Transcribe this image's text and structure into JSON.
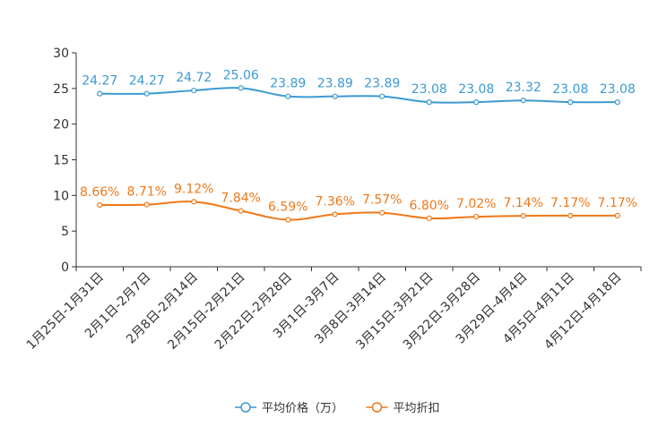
{
  "chart_data": {
    "type": "line",
    "title": "",
    "xlabel": "",
    "ylabel": "",
    "ylim": [
      0,
      30
    ],
    "yticks": [
      0,
      5,
      10,
      15,
      20,
      25,
      30
    ],
    "categories": [
      "1月25日-1月31日",
      "2月1日-2月7日",
      "2月8日-2月14日",
      "2月15日-2月21日",
      "2月22日-2月28日",
      "3月1日-3月7日",
      "3月8日-3月14日",
      "3月15日-3月21日",
      "3月22日-3月28日",
      "3月29日-4月4日",
      "4月5日-4月11日",
      "4月12日-4月18日"
    ],
    "series": [
      {
        "name": "平均价格（万）",
        "color": "#3b9ad2",
        "values": [
          24.27,
          24.27,
          24.72,
          25.06,
          23.89,
          23.89,
          23.89,
          23.08,
          23.08,
          23.32,
          23.08,
          23.08
        ],
        "labels": [
          "24.27",
          "24.27",
          "24.72",
          "25.06",
          "23.89",
          "23.89",
          "23.89",
          "23.08",
          "23.08",
          "23.32",
          "23.08",
          "23.08"
        ]
      },
      {
        "name": "平均折扣",
        "color": "#f07818",
        "values": [
          8.66,
          8.71,
          9.12,
          7.84,
          6.59,
          7.36,
          7.57,
          6.8,
          7.02,
          7.14,
          7.17,
          7.17
        ],
        "labels": [
          "8.66%",
          "8.71%",
          "9.12%",
          "7.84%",
          "6.59%",
          "7.36%",
          "7.57%",
          "6.80%",
          "7.02%",
          "7.14%",
          "7.17%",
          "7.17%"
        ]
      }
    ],
    "legend": "bottom"
  }
}
